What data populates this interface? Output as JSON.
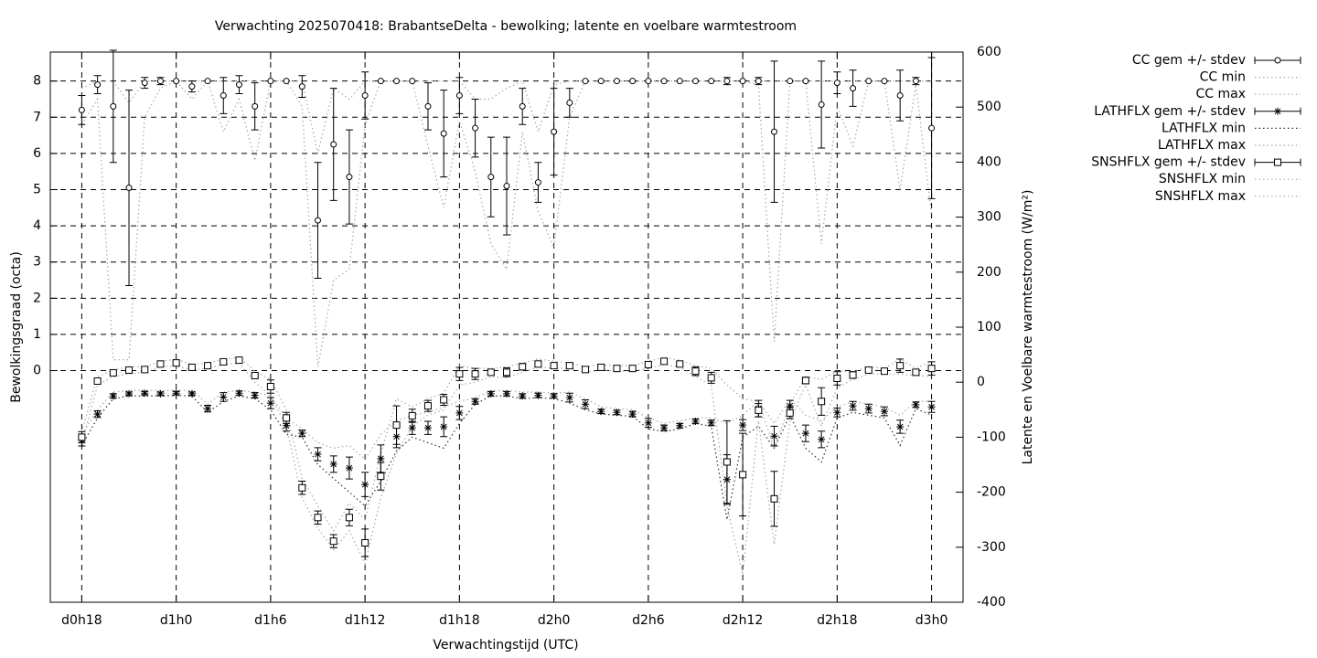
{
  "chart_data": {
    "type": "line",
    "title": "Verwachting 2025070418: BrabantseDelta - bewolking; latente en voelbare warmtestroom",
    "x_label": "Verwachtingstijd (UTC)",
    "y_label": "Bewolkingsgraad (octa)",
    "y2_label": "Latente en Voelbare warmtestroom (W/m²)",
    "x": [
      18,
      19,
      20,
      21,
      22,
      23,
      24,
      25,
      26,
      27,
      28,
      29,
      30,
      31,
      32,
      33,
      34,
      35,
      36,
      37,
      38,
      39,
      40,
      41,
      42,
      43,
      44,
      45,
      46,
      47,
      48,
      49,
      50,
      51,
      52,
      53,
      54,
      55,
      56,
      57,
      58,
      59,
      60,
      61,
      62,
      63,
      64,
      65,
      66,
      67,
      68,
      69,
      70,
      71,
      72
    ],
    "xlim": [
      16,
      74
    ],
    "xticks": [
      {
        "value": 18,
        "label": "d0h18"
      },
      {
        "value": 24,
        "label": "d1h0"
      },
      {
        "value": 30,
        "label": "d1h6"
      },
      {
        "value": 36,
        "label": "d1h12"
      },
      {
        "value": 42,
        "label": "d1h18"
      },
      {
        "value": 48,
        "label": "d2h0"
      },
      {
        "value": 54,
        "label": "d2h6"
      },
      {
        "value": 60,
        "label": "d2h12"
      },
      {
        "value": 66,
        "label": "d2h18"
      },
      {
        "value": 72,
        "label": "d3h0"
      }
    ],
    "ylim": [
      -6.4,
      8.8
    ],
    "yticks": [
      0,
      1,
      2,
      3,
      4,
      5,
      6,
      7,
      8
    ],
    "y2lim": [
      -400,
      600
    ],
    "y2ticks": [
      -400,
      -300,
      -200,
      -100,
      0,
      100,
      200,
      300,
      400,
      500,
      600
    ],
    "grid": true,
    "legend": "outside-top-right",
    "series": [
      {
        "name": "CC gem +/- stdev",
        "style": "errorbars",
        "marker": "circle",
        "color": "#000000",
        "values": [
          7.2,
          7.9,
          7.3,
          5.05,
          7.95,
          8,
          8,
          7.85,
          8,
          7.6,
          7.9,
          7.3,
          8,
          8,
          7.85,
          4.15,
          6.25,
          5.35,
          7.6,
          8,
          8,
          8,
          7.3,
          6.55,
          7.6,
          6.7,
          5.35,
          5.1,
          7.3,
          5.2,
          6.6,
          7.4,
          8,
          8,
          8,
          8,
          8,
          8,
          8,
          8,
          8,
          8,
          8,
          8,
          6.6,
          8,
          8,
          7.35,
          7.95,
          7.8,
          8,
          8,
          7.6,
          8,
          6.7
        ],
        "errors": [
          0.4,
          0.25,
          1.55,
          2.7,
          0.15,
          0.1,
          0,
          0.15,
          0,
          0.5,
          0.25,
          0.65,
          0,
          0,
          0.3,
          1.6,
          1.55,
          1.3,
          0.65,
          0,
          0,
          0,
          0.65,
          1.2,
          0.5,
          0.8,
          1.1,
          1.35,
          0.5,
          0.55,
          1.2,
          0.4,
          0,
          0,
          0,
          0,
          0,
          0,
          0,
          0,
          0,
          0.1,
          0,
          0.1,
          1.95,
          0,
          0,
          1.2,
          0.3,
          0.5,
          0,
          0,
          0.7,
          0.1,
          1.95
        ]
      },
      {
        "name": "CC min",
        "style": "dotted",
        "color": "#a8a8a8",
        "values": [
          6.8,
          7.5,
          0.3,
          0.3,
          7.0,
          7.8,
          8,
          7.5,
          8,
          6.6,
          7.5,
          5.8,
          8,
          8,
          7.3,
          0.1,
          2.5,
          2.8,
          6.8,
          8,
          8,
          8,
          6.2,
          4.5,
          6.9,
          5.5,
          3.5,
          2.8,
          6.6,
          4.4,
          3.4,
          7.0,
          8,
          8,
          8,
          8,
          8,
          8,
          8,
          8,
          8,
          8,
          8,
          7.9,
          0.8,
          8,
          8,
          3.5,
          7.3,
          6.2,
          8,
          8,
          5.0,
          7.9,
          4.3
        ]
      },
      {
        "name": "CC max",
        "style": "dotted",
        "color": "#a8a8a8",
        "values": [
          7.8,
          8,
          8,
          7.4,
          8,
          8,
          8,
          8,
          8,
          8,
          8,
          8,
          8,
          8,
          8,
          6.0,
          7.8,
          7.5,
          8,
          8,
          8,
          8,
          8,
          8,
          8,
          7.5,
          7.5,
          7.8,
          8,
          6.6,
          7.9,
          8,
          8,
          8,
          8,
          8,
          8,
          8,
          8,
          8,
          8,
          8,
          8,
          8,
          8,
          8,
          8,
          8,
          8,
          8,
          8,
          8,
          8,
          8,
          8
        ]
      },
      {
        "name": "LATHFLX gem +/- stdev",
        "style": "errorbars",
        "marker": "asterisk",
        "color": "#000000",
        "axis": "y2",
        "values": [
          -106,
          -58,
          -25,
          -21,
          -20,
          -21,
          -20,
          -21,
          -48,
          -27,
          -20,
          -24,
          -38,
          -79,
          -93,
          -131,
          -149,
          -156,
          -186,
          -139,
          -99,
          -83,
          -83,
          -81,
          -56,
          -35,
          -21,
          -21,
          -25,
          -24,
          -25,
          -28,
          -40,
          -53,
          -55,
          -58,
          -74,
          -83,
          -79,
          -71,
          -74,
          -177,
          -78,
          -48,
          -98,
          -43,
          -93,
          -104,
          -55,
          -43,
          -48,
          -53,
          -81,
          -41,
          -45
        ],
        "errors": [
          10,
          6,
          4,
          3,
          3,
          3,
          3,
          3,
          6,
          8,
          4,
          5,
          10,
          10,
          6,
          12,
          15,
          20,
          22,
          25,
          20,
          12,
          12,
          18,
          12,
          5,
          4,
          4,
          4,
          4,
          4,
          8,
          8,
          4,
          4,
          5,
          8,
          5,
          4,
          4,
          5,
          45,
          10,
          15,
          18,
          10,
          15,
          15,
          8,
          8,
          8,
          8,
          12,
          5,
          10
        ]
      },
      {
        "name": "LATHFLX min",
        "style": "dotted",
        "color": "#303030",
        "axis": "y2",
        "values": [
          -115,
          -65,
          -30,
          -25,
          -25,
          -25,
          -24,
          -25,
          -55,
          -35,
          -25,
          -30,
          -50,
          -95,
          -100,
          -150,
          -175,
          -200,
          -225,
          -180,
          -125,
          -100,
          -110,
          -120,
          -75,
          -40,
          -25,
          -25,
          -30,
          -28,
          -30,
          -38,
          -50,
          -58,
          -60,
          -62,
          -85,
          -90,
          -85,
          -75,
          -80,
          -250,
          -100,
          -80,
          -120,
          -60,
          -120,
          -145,
          -65,
          -55,
          -60,
          -65,
          -115,
          -48,
          -60
        ]
      },
      {
        "name": "LATHFLX max",
        "style": "dotted",
        "color": "#a8a8a8",
        "axis": "y2",
        "values": [
          -95,
          -50,
          -18,
          -15,
          -15,
          -15,
          -15,
          -15,
          -40,
          -18,
          -15,
          -18,
          -25,
          -65,
          -85,
          -110,
          -120,
          -115,
          -140,
          -95,
          -70,
          -60,
          -55,
          -45,
          -35,
          -28,
          -16,
          -15,
          -18,
          -18,
          -20,
          -18,
          -30,
          -45,
          -48,
          -50,
          -65,
          -75,
          -70,
          -65,
          -65,
          -75,
          -60,
          -35,
          -75,
          -30,
          -60,
          -70,
          -45,
          -35,
          -40,
          -45,
          -60,
          -35,
          -35
        ]
      },
      {
        "name": "SNSHFLX gem +/- stdev",
        "style": "errorbars",
        "marker": "square",
        "color": "#000000",
        "axis": "y2",
        "values": [
          -100,
          2,
          17,
          22,
          23,
          33,
          35,
          27,
          30,
          37,
          40,
          12,
          -8,
          -65,
          -192,
          -246,
          -289,
          -246,
          -292,
          -171,
          -78,
          -61,
          -43,
          -32,
          15,
          15,
          18,
          18,
          28,
          33,
          30,
          30,
          23,
          27,
          25,
          25,
          32,
          38,
          33,
          20,
          8,
          -145,
          -168,
          -51,
          -212,
          -56,
          3,
          -35,
          7,
          13,
          22,
          20,
          30,
          18,
          25
        ],
        "errors": [
          10,
          3,
          3,
          3,
          3,
          3,
          3,
          3,
          3,
          3,
          3,
          3,
          12,
          10,
          12,
          12,
          12,
          15,
          25,
          25,
          35,
          12,
          10,
          10,
          12,
          10,
          4,
          8,
          6,
          4,
          3,
          3,
          3,
          3,
          3,
          3,
          4,
          3,
          3,
          8,
          10,
          75,
          75,
          12,
          50,
          10,
          6,
          25,
          12,
          6,
          3,
          3,
          12,
          4,
          12
        ]
      },
      {
        "name": "SNSHFLX min",
        "style": "dotted",
        "color": "#a8a8a8",
        "axis": "y2",
        "values": [
          -110,
          -5,
          10,
          15,
          18,
          28,
          30,
          22,
          25,
          32,
          35,
          0,
          -25,
          -80,
          -210,
          -265,
          -305,
          -270,
          -330,
          -210,
          -130,
          -80,
          -60,
          -50,
          -5,
          0,
          10,
          8,
          18,
          28,
          25,
          25,
          18,
          22,
          20,
          20,
          25,
          32,
          28,
          10,
          -5,
          -225,
          -350,
          -70,
          -295,
          -70,
          -5,
          -80,
          -10,
          5,
          15,
          15,
          15,
          12,
          10
        ]
      },
      {
        "name": "SNSHFLX max",
        "style": "dotted",
        "color": "#a8a8a8",
        "axis": "y2",
        "values": [
          -90,
          10,
          22,
          28,
          28,
          38,
          42,
          32,
          35,
          42,
          45,
          20,
          5,
          -50,
          -175,
          -225,
          -270,
          -220,
          -250,
          -130,
          -30,
          -45,
          -30,
          -20,
          30,
          25,
          25,
          28,
          35,
          42,
          38,
          35,
          28,
          32,
          30,
          30,
          38,
          45,
          40,
          30,
          25,
          -5,
          -30,
          -35,
          -120,
          -40,
          10,
          5,
          20,
          18,
          28,
          25,
          42,
          25,
          38
        ]
      }
    ]
  }
}
